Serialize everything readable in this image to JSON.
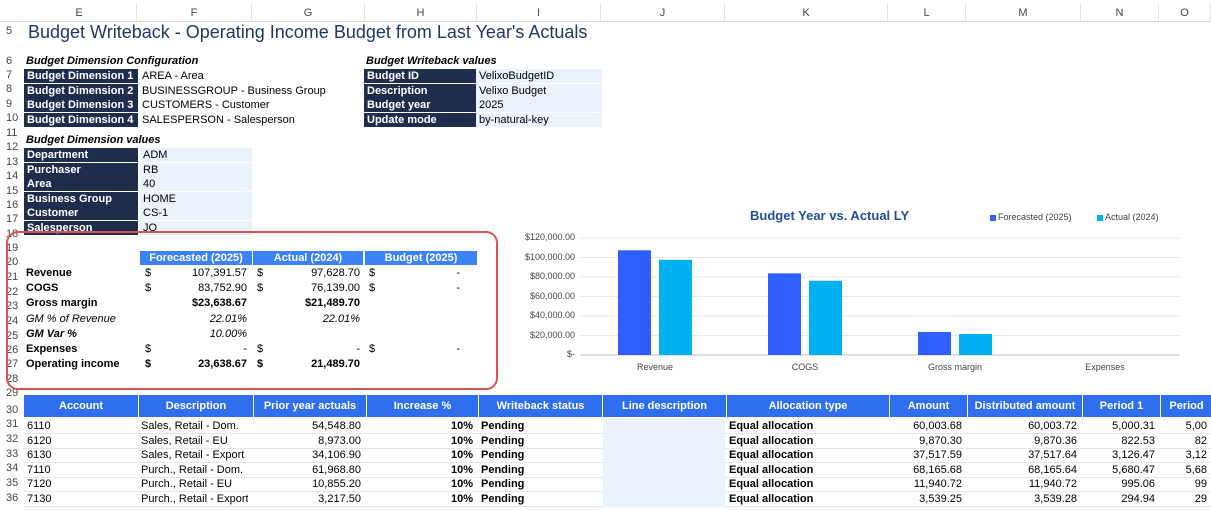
{
  "colors": {
    "navy": "#1f2d4d",
    "blue_header": "#3b82f6",
    "grid_header": "#2f6fed",
    "forecast": "#2f5fff",
    "actual": "#00b0f0",
    "highlight": "#d9534f"
  },
  "columns": [
    "E",
    "F",
    "G",
    "H",
    "I",
    "J",
    "K",
    "L",
    "M",
    "N",
    "O"
  ],
  "rows": [
    "5",
    "6",
    "7",
    "8",
    "9",
    "10",
    "11",
    "12",
    "13",
    "14",
    "15",
    "16",
    "17",
    "18",
    "19",
    "20",
    "21",
    "22",
    "23",
    "24",
    "25",
    "26",
    "27",
    "28",
    "29",
    "30",
    "31",
    "32",
    "33",
    "34",
    "35",
    "36"
  ],
  "title": "Budget Writeback - Operating Income Budget from Last Year's Actuals",
  "config": {
    "heading": "Budget Dimension Configuration",
    "items": [
      {
        "label": "Budget Dimension 1",
        "value": "AREA - Area"
      },
      {
        "label": "Budget Dimension 2",
        "value": "BUSINESSGROUP - Business Group"
      },
      {
        "label": "Budget Dimension 3",
        "value": "CUSTOMERS - Customer"
      },
      {
        "label": "Budget Dimension 4",
        "value": "SALESPERSON - Salesperson"
      }
    ]
  },
  "writeback": {
    "heading": "Budget Writeback values",
    "items": [
      {
        "label": "Budget ID",
        "value": "VelixoBudgetID"
      },
      {
        "label": "Description",
        "value": "Velixo Budget"
      },
      {
        "label": "Budget year",
        "value": "2025"
      },
      {
        "label": "Update mode",
        "value": "by-natural-key"
      }
    ]
  },
  "dimvalues": {
    "heading": "Budget Dimension values",
    "items": [
      {
        "label": "Department",
        "value": "ADM"
      },
      {
        "label": "Purchaser",
        "value": "RB"
      },
      {
        "label": "Area",
        "value": "40"
      },
      {
        "label": "Business Group",
        "value": "HOME"
      },
      {
        "label": "Customer",
        "value": "CS-1"
      },
      {
        "label": "Salesperson",
        "value": "JO"
      }
    ]
  },
  "summary": {
    "headers": [
      "Forecasted (2025)",
      "Actual (2024)",
      "Budget (2025)"
    ],
    "rows": [
      {
        "label": "Revenue",
        "bold": true,
        "italic": false,
        "f_cur": "$",
        "f": "107,391.57",
        "a_cur": "$",
        "a": "97,628.70",
        "b_cur": "$",
        "b": "-"
      },
      {
        "label": "COGS",
        "bold": true,
        "italic": false,
        "f_cur": "$",
        "f": "83,752.90",
        "a_cur": "$",
        "a": "76,139.00",
        "b_cur": "$",
        "b": "-"
      },
      {
        "label": "Gross margin",
        "bold": true,
        "italic": false,
        "f_cur": "",
        "f": "$23,638.67",
        "a_cur": "",
        "a": "$21,489.70",
        "b_cur": "",
        "b": ""
      },
      {
        "label": "GM % of Revenue",
        "bold": false,
        "italic": true,
        "f_cur": "",
        "f": "22.01%",
        "a_cur": "",
        "a": "22.01%",
        "b_cur": "",
        "b": ""
      },
      {
        "label": "GM Var %",
        "bold": true,
        "italic": true,
        "f_cur": "",
        "f": "10.00%",
        "a_cur": "",
        "a": "",
        "b_cur": "",
        "b": ""
      },
      {
        "label": "Expenses",
        "bold": true,
        "italic": false,
        "f_cur": "$",
        "f": "-",
        "a_cur": "$",
        "a": "-",
        "b_cur": "$",
        "b": "-"
      },
      {
        "label": "Operating income",
        "bold": true,
        "italic": false,
        "f_cur": "$",
        "f": "23,638.67",
        "a_cur": "$",
        "a": "21,489.70",
        "b_cur": "",
        "b": ""
      }
    ]
  },
  "chart_data": {
    "type": "bar",
    "title": "Budget Year vs. Actual LY",
    "categories": [
      "Revenue",
      "COGS",
      "Gross margin",
      "Expenses"
    ],
    "series": [
      {
        "name": "Forecasted (2025)",
        "values": [
          107391.57,
          83752.9,
          23638.67,
          0
        ]
      },
      {
        "name": "Actual (2024)",
        "values": [
          97628.7,
          76139.0,
          21489.7,
          0
        ]
      }
    ],
    "ylim": [
      0,
      120000
    ],
    "yticks": [
      "$120,000.00",
      "$100,000.00",
      "$80,000.00",
      "$60,000.00",
      "$40,000.00",
      "$20,000.00",
      "$-"
    ],
    "legend": "top-right",
    "grid": true
  },
  "grid": {
    "headers": [
      "Account",
      "Description",
      "Prior year actuals",
      "Increase %",
      "Writeback status",
      "Line description",
      "Allocation type",
      "Amount",
      "Distributed amount",
      "Period 1",
      "Period"
    ],
    "rows": [
      [
        "6110",
        "Sales, Retail - Dom.",
        "54,548.80",
        "10%",
        "Pending",
        "",
        "Equal allocation",
        "60,003.68",
        "60,003.72",
        "5,000.31",
        "5,00"
      ],
      [
        "6120",
        "Sales, Retail - EU",
        "8,973.00",
        "10%",
        "Pending",
        "",
        "Equal allocation",
        "9,870.30",
        "9,870.36",
        "822.53",
        "82"
      ],
      [
        "6130",
        "Sales, Retail - Export",
        "34,106.90",
        "10%",
        "Pending",
        "",
        "Equal allocation",
        "37,517.59",
        "37,517.64",
        "3,126.47",
        "3,12"
      ],
      [
        "7110",
        "Purch., Retail - Dom.",
        "61,968.80",
        "10%",
        "Pending",
        "",
        "Equal allocation",
        "68,165.68",
        "68,165.64",
        "5,680.47",
        "5,68"
      ],
      [
        "7120",
        "Purch., Retail - EU",
        "10,855.20",
        "10%",
        "Pending",
        "",
        "Equal allocation",
        "11,940.72",
        "11,940.72",
        "995.06",
        "99"
      ],
      [
        "7130",
        "Purch., Retail - Export",
        "3,217.50",
        "10%",
        "Pending",
        "",
        "Equal allocation",
        "3,539.25",
        "3,539.28",
        "294.94",
        "29"
      ]
    ]
  }
}
